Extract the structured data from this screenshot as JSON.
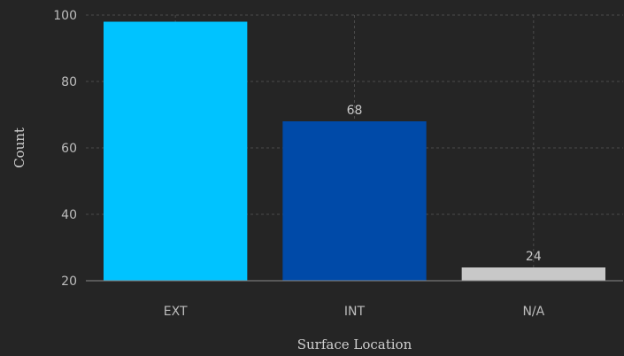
{
  "chart_data": {
    "type": "bar",
    "title": "",
    "xlabel": "Surface Location",
    "ylabel": "Count",
    "categories": [
      "EXT",
      "INT",
      "N/A"
    ],
    "values": [
      98,
      68,
      24
    ],
    "data_labels": [
      "",
      "68",
      "24"
    ],
    "bar_colors": [
      "#00c3ff",
      "#004aa8",
      "#c8c8c8"
    ],
    "ylim": [
      20,
      100
    ],
    "yticks": [
      20,
      40,
      60,
      80,
      100
    ],
    "grid": true,
    "legend": "none"
  },
  "colors": {
    "background": "#252525",
    "grid": "#4a4a4a",
    "text": "#bdbdbd"
  }
}
